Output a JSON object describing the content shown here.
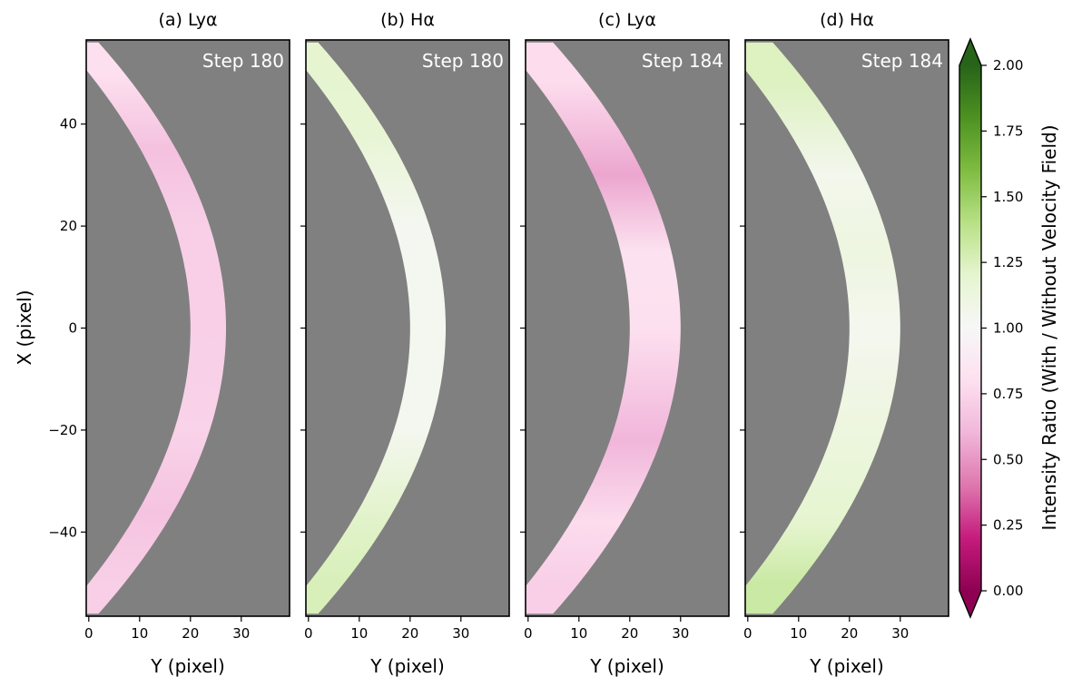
{
  "chart_data": {
    "type": "heatmap",
    "colormap": "PiYG",
    "background_color": "#808080",
    "xlabel": "Y (pixel)",
    "ylabel": "X (pixel)",
    "xlim": [
      -0.5,
      39.5
    ],
    "ylim": [
      -56.5,
      56.5
    ],
    "xticks": [
      0,
      10,
      20,
      30
    ],
    "yticks": [
      40,
      20,
      0,
      -20,
      -40
    ],
    "ytick_labels": [
      "40",
      "20",
      "0",
      "−20",
      "−40"
    ],
    "colorbar": {
      "label": "Intensity Ratio (With / Without Velocity Field)",
      "vmin": 0.0,
      "vmax": 2.0,
      "ticks": [
        0.0,
        0.25,
        0.5,
        0.75,
        1.0,
        1.25,
        1.5,
        1.75,
        2.0
      ],
      "tick_labels": [
        "0.00",
        "0.25",
        "0.50",
        "0.75",
        "1.00",
        "1.25",
        "1.50",
        "1.75",
        "2.00"
      ],
      "extend": "both"
    },
    "panels": [
      {
        "title": "(a) Lyα",
        "step_label": "Step 180",
        "arc_inner_offset": 0,
        "arc_outer_offset": 7,
        "ratio_profile": [
          {
            "x": 50,
            "ratio": 0.8
          },
          {
            "x": 35,
            "ratio": 0.65
          },
          {
            "x": 20,
            "ratio": 0.72
          },
          {
            "x": 0,
            "ratio": 0.72
          },
          {
            "x": -20,
            "ratio": 0.74
          },
          {
            "x": -36,
            "ratio": 0.66
          },
          {
            "x": -50,
            "ratio": 0.72
          }
        ]
      },
      {
        "title": "(b) Hα",
        "step_label": "Step 180",
        "arc_inner_offset": 0,
        "arc_outer_offset": 7,
        "ratio_profile": [
          {
            "x": 50,
            "ratio": 1.2
          },
          {
            "x": 38,
            "ratio": 1.18
          },
          {
            "x": 20,
            "ratio": 1.03
          },
          {
            "x": 0,
            "ratio": 1.04
          },
          {
            "x": -20,
            "ratio": 1.04
          },
          {
            "x": -38,
            "ratio": 1.22
          },
          {
            "x": -50,
            "ratio": 1.26
          }
        ]
      },
      {
        "title": "(c) Lyα",
        "step_label": "Step 184",
        "arc_inner_offset": 0,
        "arc_outer_offset": 10,
        "ratio_profile": [
          {
            "x": 48,
            "ratio": 0.78
          },
          {
            "x": 30,
            "ratio": 0.55
          },
          {
            "x": 15,
            "ratio": 0.82
          },
          {
            "x": 0,
            "ratio": 0.8
          },
          {
            "x": -22,
            "ratio": 0.6
          },
          {
            "x": -38,
            "ratio": 0.78
          },
          {
            "x": -50,
            "ratio": 0.72
          }
        ]
      },
      {
        "title": "(d) Hα",
        "step_label": "Step 184",
        "arc_inner_offset": 0,
        "arc_outer_offset": 10,
        "ratio_profile": [
          {
            "x": 48,
            "ratio": 1.24
          },
          {
            "x": 30,
            "ratio": 1.05
          },
          {
            "x": 15,
            "ratio": 1.12
          },
          {
            "x": 0,
            "ratio": 1.04
          },
          {
            "x": -15,
            "ratio": 1.1
          },
          {
            "x": -38,
            "ratio": 1.2
          },
          {
            "x": -50,
            "ratio": 1.32
          }
        ]
      }
    ]
  }
}
